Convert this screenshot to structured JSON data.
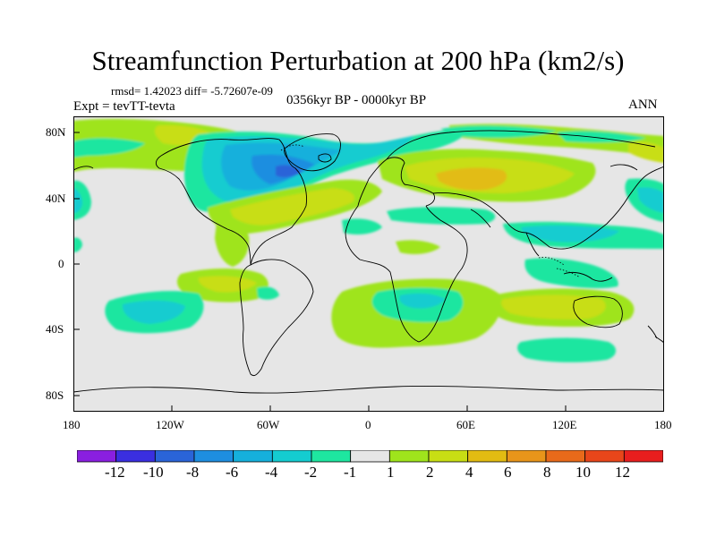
{
  "title": "Streamfunction Perturbation at 200 hPa (km2/s)",
  "stats": "rmsd= 1.42023 diff= -5.72607e-09",
  "expt": "Expt = tevTT-tevta",
  "period": "0356kyr BP - 0000kyr BP",
  "season": "ANN",
  "axes": {
    "x_ticks": [
      "180",
      "120W",
      "60W",
      "0",
      "60E",
      "120E",
      "180"
    ],
    "y_ticks": [
      "80N",
      "40N",
      "0",
      "40S",
      "80S"
    ]
  },
  "colorbar": {
    "labels": [
      "-12",
      "-10",
      "-8",
      "-6",
      "-4",
      "-2",
      "-1",
      "1",
      "2",
      "4",
      "6",
      "8",
      "10",
      "12"
    ],
    "colors": [
      "#8a1fe0",
      "#3a2fe0",
      "#2a64d8",
      "#1e8ee0",
      "#15b0dc",
      "#14ccd0",
      "#1ee6a0",
      "#e6e6e6",
      "#9fe41c",
      "#c8de14",
      "#e2bc12",
      "#e8951a",
      "#e86a1a",
      "#e8461a",
      "#e81e1e"
    ]
  }
}
